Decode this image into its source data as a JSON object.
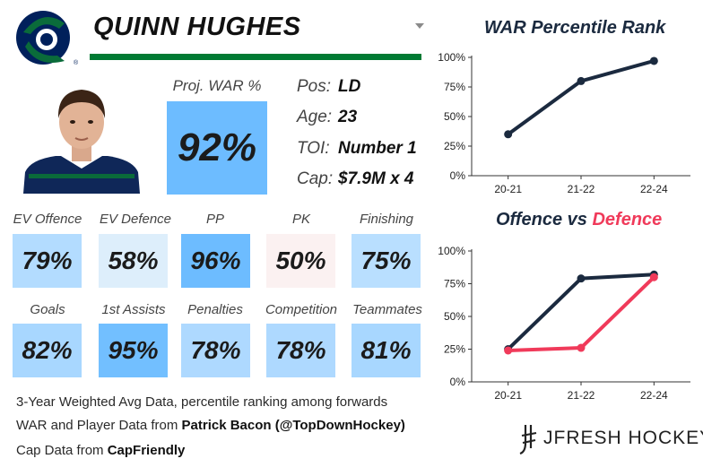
{
  "player": {
    "name": "QUINN HUGHES",
    "war_label": "Proj. WAR %",
    "war_value": "92%",
    "info": [
      {
        "key": "Pos:",
        "value": "LD"
      },
      {
        "key": "Age:",
        "value": "23"
      },
      {
        "key": "TOI:",
        "value": "Number 1"
      },
      {
        "key": "Cap:",
        "value": "$7.9M x 4"
      }
    ]
  },
  "metrics": [
    {
      "label": "EV Offence",
      "value": "79%",
      "color": "#b3dcff"
    },
    {
      "label": "EV Defence",
      "value": "58%",
      "color": "#ddeefb"
    },
    {
      "label": "PP",
      "value": "96%",
      "color": "#6dbcff"
    },
    {
      "label": "PK",
      "value": "50%",
      "color": "#fbf1f1"
    },
    {
      "label": "Finishing",
      "value": "75%",
      "color": "#b9dfff"
    },
    {
      "label": "Goals",
      "value": "82%",
      "color": "#a8d7ff"
    },
    {
      "label": "1st Assists",
      "value": "95%",
      "color": "#72bfff"
    },
    {
      "label": "Penalties",
      "value": "78%",
      "color": "#aed9ff"
    },
    {
      "label": "Competition",
      "value": "78%",
      "color": "#aed9ff"
    },
    {
      "label": "Teammates",
      "value": "81%",
      "color": "#a8d7ff"
    }
  ],
  "footer": {
    "line1": "3-Year Weighted Avg Data, percentile ranking among forwards",
    "line2_prefix": "WAR and Player Data from ",
    "line2_bold": "Patrick Bacon (@TopDownHockey)",
    "line3_prefix": "Cap Data from ",
    "line3_bold": "CapFriendly"
  },
  "brand": "JFRESH HOCKEY",
  "colors": {
    "navy": "#1b2a3f",
    "red": "#f03a5a",
    "green": "#007a33",
    "accent_blue": "#6dbcff"
  },
  "chart_data": [
    {
      "type": "line",
      "title": "WAR Percentile Rank",
      "categories": [
        "20-21",
        "21-22",
        "22-24"
      ],
      "series": [
        {
          "values": [
            35,
            80,
            97
          ],
          "color": "#1b2a3f"
        }
      ],
      "ylim": [
        0,
        100
      ],
      "yticks": [
        "0%",
        "25%",
        "50%",
        "75%",
        "100%"
      ],
      "grid": false
    },
    {
      "type": "line",
      "title_parts": [
        "Offence",
        " vs ",
        "Defence"
      ],
      "categories": [
        "20-21",
        "21-22",
        "22-24"
      ],
      "series": [
        {
          "name": "Offence",
          "values": [
            25,
            79,
            82
          ],
          "color": "#1b2a3f"
        },
        {
          "name": "Defence",
          "values": [
            24,
            26,
            80
          ],
          "color": "#f03a5a"
        }
      ],
      "ylim": [
        0,
        100
      ],
      "yticks": [
        "0%",
        "25%",
        "50%",
        "75%",
        "100%"
      ],
      "grid": false
    }
  ]
}
